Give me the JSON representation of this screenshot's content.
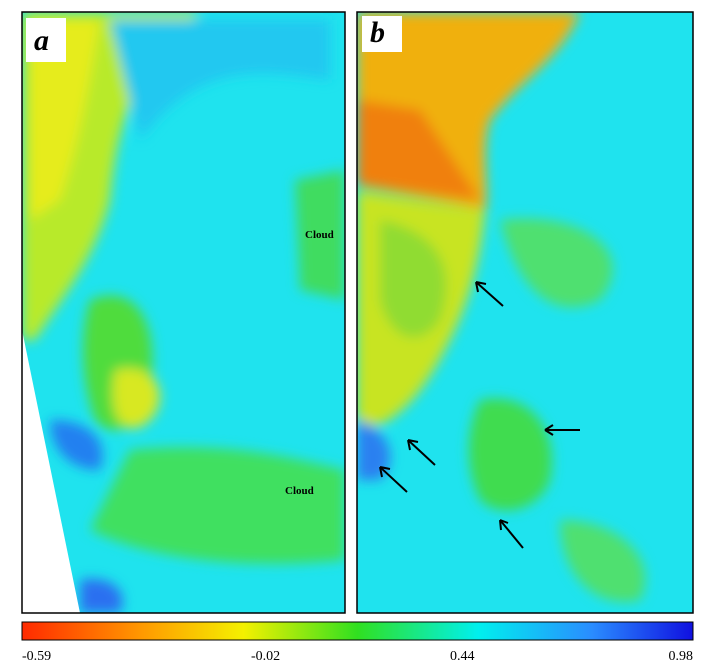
{
  "panels": [
    {
      "label": "a",
      "annotations": [
        "Cloud",
        "Cloud"
      ]
    },
    {
      "label": "b"
    }
  ],
  "colorbar": {
    "lim": [
      -0.59,
      0.98
    ],
    "ticks": [
      -0.59,
      -0.02,
      0.44,
      0.98
    ]
  }
}
